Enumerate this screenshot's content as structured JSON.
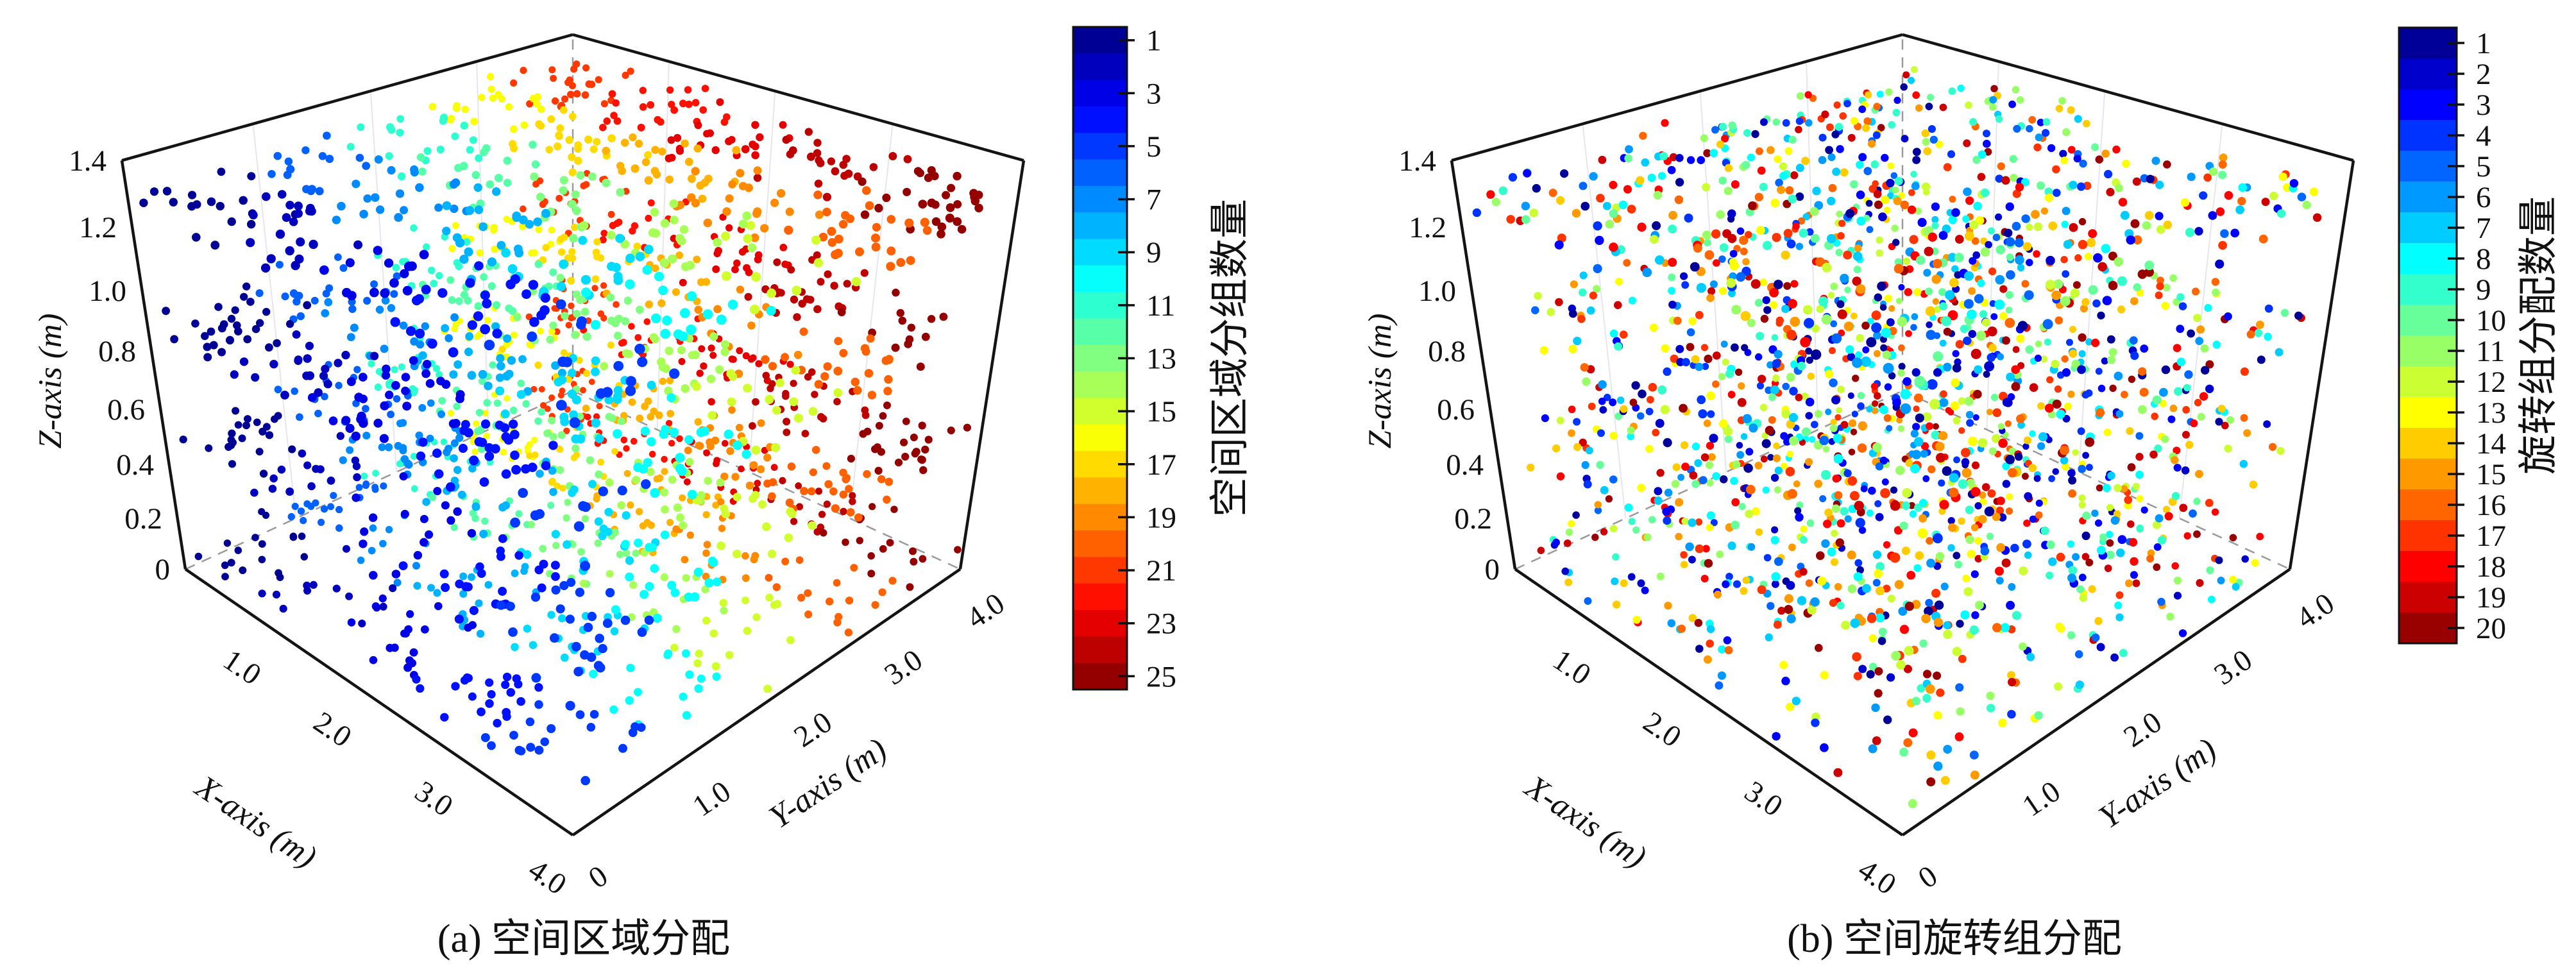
{
  "figure": {
    "background": "#ffffff",
    "panels": [
      {
        "id": "a",
        "caption": "(a) 空间区域分配",
        "axes": {
          "x_label": "X-axis (m)",
          "y_label": "Y-axis (m)",
          "z_label": "Z-axis (m)",
          "x_tick_labels": [
            "1.0",
            "2.0",
            "3.0",
            "4.0"
          ],
          "y_tick_labels": [
            "0",
            "1.0",
            "2.0",
            "3.0",
            "4.0"
          ],
          "z_tick_labels": [
            "0",
            "0.2",
            "0.4",
            "0.6",
            "0.8",
            "1.0",
            "1.2",
            "1.4"
          ]
        },
        "colorbar": {
          "label": "空间区域分组数量",
          "levels": 25,
          "value_min": 1,
          "value_max": 25,
          "tick_values": [
            1,
            3,
            5,
            7,
            9,
            11,
            13,
            15,
            17,
            19,
            21,
            23,
            25
          ],
          "tick_labels": [
            "1",
            "3",
            "5",
            "7",
            "9",
            "11",
            "13",
            "15",
            "17",
            "19",
            "21",
            "23",
            "25"
          ],
          "colormap": "jet",
          "top_value_color": "#00008f",
          "bottom_value_color": "#8f0000"
        }
      },
      {
        "id": "b",
        "caption": "(b) 空间旋转组分配",
        "axes": {
          "x_label": "X-axis (m)",
          "y_label": "Y-axis (m)",
          "z_label": "Z-axis (m)",
          "x_tick_labels": [
            "1.0",
            "2.0",
            "3.0",
            "4.0"
          ],
          "y_tick_labels": [
            "0",
            "1.0",
            "2.0",
            "3.0",
            "4.0"
          ],
          "z_tick_labels": [
            "0",
            "0.2",
            "0.4",
            "0.6",
            "0.8",
            "1.0",
            "1.2",
            "1.4"
          ]
        },
        "colorbar": {
          "label": "旋转组分配数量",
          "levels": 20,
          "value_min": 1,
          "value_max": 20,
          "tick_values": [
            1,
            2,
            3,
            4,
            5,
            6,
            7,
            8,
            9,
            10,
            11,
            12,
            13,
            14,
            15,
            16,
            17,
            18,
            19,
            20
          ],
          "tick_labels": [
            "1",
            "2",
            "3",
            "4",
            "5",
            "6",
            "7",
            "8",
            "9",
            "10",
            "11",
            "12",
            "13",
            "14",
            "15",
            "16",
            "17",
            "18",
            "19",
            "20"
          ],
          "colormap": "jet",
          "top_value_color": "#00008f",
          "bottom_value_color": "#8f0000"
        }
      }
    ]
  },
  "chart_data": [
    {
      "type": "scatter",
      "projection": "3d-perspective",
      "title": "(a) 空间区域分配",
      "xlabel": "X-axis (m)",
      "ylabel": "Y-axis (m)",
      "zlabel": "Z-axis (m)",
      "xlim": [
        0,
        4
      ],
      "ylim": [
        0,
        4
      ],
      "zlim": [
        0,
        1.4
      ],
      "x_ticks": [
        1,
        2,
        3,
        4
      ],
      "y_ticks": [
        0,
        1,
        2,
        3,
        4
      ],
      "z_ticks": [
        0,
        0.2,
        0.4,
        0.6,
        0.8,
        1.0,
        1.2,
        1.4
      ],
      "grid": false,
      "colormap": "jet",
      "color_value_range": [
        1,
        25
      ],
      "colorbar_label": "空间区域分组数量",
      "colorbar_tick_values": [
        1,
        3,
        5,
        7,
        9,
        11,
        13,
        15,
        17,
        19,
        21,
        23,
        25
      ],
      "n_points": 2000,
      "point_layers_z": [
        [
          0.03,
          0.15
        ],
        [
          0.43,
          0.55
        ],
        [
          0.83,
          0.95
        ],
        [
          1.23,
          1.35
        ]
      ],
      "xy_distribution": "uniform over [0,4] x [0,4]",
      "color_rule": "spatial region id = floor(y/0.8)*5 + floor(x/0.8) + 1 (5x5 grid of 0.8 m cells, values 1-25, jet colormap)",
      "seed": 12345
    },
    {
      "type": "scatter",
      "projection": "3d-perspective",
      "title": "(b) 空间旋转组分配",
      "xlabel": "X-axis (m)",
      "ylabel": "Y-axis (m)",
      "zlabel": "Z-axis (m)",
      "xlim": [
        0,
        4
      ],
      "ylim": [
        0,
        4
      ],
      "zlim": [
        0,
        1.4
      ],
      "x_ticks": [
        1,
        2,
        3,
        4
      ],
      "y_ticks": [
        0,
        1,
        2,
        3,
        4
      ],
      "z_ticks": [
        0,
        0.2,
        0.4,
        0.6,
        0.8,
        1.0,
        1.2,
        1.4
      ],
      "grid": false,
      "colormap": "jet",
      "color_value_range": [
        1,
        20
      ],
      "colorbar_label": "旋转组分配数量",
      "colorbar_tick_values": [
        1,
        2,
        3,
        4,
        5,
        6,
        7,
        8,
        9,
        10,
        11,
        12,
        13,
        14,
        15,
        16,
        17,
        18,
        19,
        20
      ],
      "n_points": 2000,
      "point_layers_z": [
        [
          0.03,
          0.15
        ],
        [
          0.43,
          0.55
        ],
        [
          0.83,
          0.95
        ],
        [
          1.23,
          1.35
        ]
      ],
      "xy_distribution": "uniform over [0,4] x [0,4]",
      "color_rule": "random rotation-group id, uniform integer 1-20, jet colormap",
      "seed": 67890
    }
  ]
}
